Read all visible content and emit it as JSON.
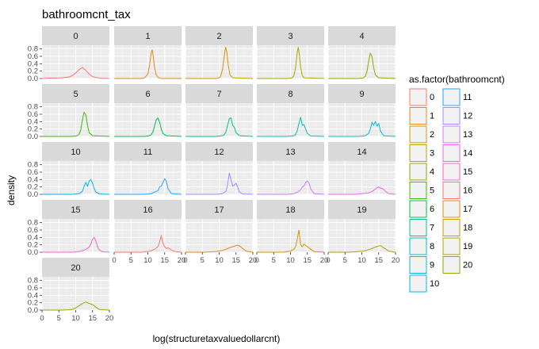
{
  "chart_data": {
    "type": "line",
    "title": "bathroomcnt_tax",
    "xlabel": "log(structuretaxvaluedollarcnt)",
    "ylabel": "density",
    "xlim": [
      0,
      20
    ],
    "ylim": [
      0,
      0.9
    ],
    "x_ticks": [
      0,
      5,
      10,
      15,
      20
    ],
    "y_ticks": [
      0.0,
      0.2,
      0.4,
      0.6,
      0.8
    ],
    "x_tick_labels": [
      "0",
      "5",
      "10",
      "15",
      "20"
    ],
    "y_tick_labels": [
      "0.0",
      "0.2",
      "0.4",
      "0.6",
      "0.8"
    ],
    "grid": true,
    "legend_position": "right",
    "legend_title": "as.factor(bathroomcnt)",
    "facet_labels": [
      "0",
      "1",
      "2",
      "3",
      "4",
      "5",
      "6",
      "7",
      "8",
      "9",
      "10",
      "11",
      "12",
      "13",
      "14",
      "15",
      "16",
      "17",
      "18",
      "19",
      "20"
    ],
    "colors": [
      "#F8766D",
      "#E7851E",
      "#D09400",
      "#B2A100",
      "#89AC00",
      "#45B500",
      "#00BC51",
      "#00C087",
      "#00C0B2",
      "#00BCD6",
      "#00B3F2",
      "#29A3FF",
      "#9C8DFF",
      "#D277FF",
      "#F166E8",
      "#FF61C7",
      "#F8766D",
      "#E7851E",
      "#D09400",
      "#B2A100",
      "#89AC00"
    ],
    "series": [
      {
        "name": "0",
        "x": [
          0,
          2,
          4,
          6,
          8,
          9,
          10,
          11,
          12,
          13,
          14,
          15,
          17,
          20
        ],
        "y": [
          0,
          0.01,
          0.01,
          0.02,
          0.04,
          0.08,
          0.15,
          0.24,
          0.3,
          0.22,
          0.12,
          0.05,
          0.01,
          0
        ]
      },
      {
        "name": "1",
        "x": [
          0,
          8,
          9,
          10,
          10.5,
          11,
          11.3,
          11.6,
          12,
          12.5,
          13,
          14,
          20
        ],
        "y": [
          0,
          0,
          0.02,
          0.12,
          0.35,
          0.7,
          0.78,
          0.6,
          0.3,
          0.1,
          0.03,
          0,
          0
        ]
      },
      {
        "name": "2",
        "x": [
          0,
          9,
          10,
          10.5,
          11,
          11.5,
          11.9,
          12.3,
          12.7,
          13.2,
          14,
          20
        ],
        "y": [
          0,
          0,
          0.02,
          0.08,
          0.25,
          0.6,
          0.85,
          0.7,
          0.35,
          0.1,
          0.02,
          0
        ]
      },
      {
        "name": "3",
        "x": [
          0,
          9,
          10.5,
          11,
          11.5,
          12,
          12.3,
          12.6,
          13,
          13.5,
          14,
          20
        ],
        "y": [
          0,
          0,
          0.02,
          0.08,
          0.3,
          0.7,
          0.85,
          0.65,
          0.3,
          0.08,
          0.02,
          0
        ]
      },
      {
        "name": "4",
        "x": [
          0,
          9,
          10.5,
          11,
          11.5,
          12,
          12.5,
          13,
          13.5,
          14,
          15,
          20
        ],
        "y": [
          0,
          0,
          0.02,
          0.06,
          0.18,
          0.45,
          0.68,
          0.6,
          0.3,
          0.1,
          0.02,
          0
        ]
      },
      {
        "name": "5",
        "x": [
          0,
          9,
          10.5,
          11,
          11.5,
          12,
          12.5,
          13,
          13.5,
          14,
          15,
          20
        ],
        "y": [
          0,
          0,
          0.02,
          0.06,
          0.18,
          0.45,
          0.65,
          0.58,
          0.3,
          0.1,
          0.02,
          0
        ]
      },
      {
        "name": "6",
        "x": [
          0,
          9,
          10.5,
          11,
          11.5,
          12,
          12.5,
          13,
          13.5,
          14,
          14.5,
          15.5,
          20
        ],
        "y": [
          0,
          0,
          0.02,
          0.05,
          0.12,
          0.28,
          0.45,
          0.5,
          0.38,
          0.2,
          0.08,
          0.02,
          0
        ]
      },
      {
        "name": "7",
        "x": [
          0,
          9,
          11,
          11.5,
          12,
          12.5,
          13,
          13.5,
          14,
          14.5,
          15,
          16,
          20
        ],
        "y": [
          0,
          0,
          0.02,
          0.05,
          0.12,
          0.3,
          0.48,
          0.5,
          0.3,
          0.25,
          0.1,
          0.02,
          0
        ]
      },
      {
        "name": "8",
        "x": [
          0,
          9,
          11,
          11.5,
          12,
          12.5,
          13,
          13.5,
          14,
          14.5,
          15,
          16,
          20
        ],
        "y": [
          0,
          0,
          0.02,
          0.05,
          0.15,
          0.35,
          0.52,
          0.3,
          0.32,
          0.2,
          0.08,
          0.01,
          0
        ]
      },
      {
        "name": "9",
        "x": [
          0,
          9,
          11,
          12,
          12.5,
          13,
          13.5,
          14,
          14.5,
          15,
          15.5,
          16.5,
          20
        ],
        "y": [
          0,
          0,
          0.02,
          0.08,
          0.2,
          0.38,
          0.3,
          0.4,
          0.28,
          0.35,
          0.15,
          0.02,
          0
        ]
      },
      {
        "name": "10",
        "x": [
          0,
          9,
          11,
          12,
          12.5,
          13,
          13.5,
          14,
          14.5,
          15,
          15.5,
          16,
          17,
          20
        ],
        "y": [
          0,
          0,
          0.02,
          0.08,
          0.22,
          0.32,
          0.22,
          0.36,
          0.4,
          0.3,
          0.15,
          0.06,
          0.01,
          0
        ]
      },
      {
        "name": "11",
        "x": [
          0,
          9,
          11,
          12,
          13,
          13.5,
          14,
          14.5,
          15,
          15.5,
          16,
          17,
          20
        ],
        "y": [
          0,
          0,
          0.02,
          0.06,
          0.1,
          0.2,
          0.22,
          0.32,
          0.42,
          0.35,
          0.15,
          0.02,
          0
        ]
      },
      {
        "name": "12",
        "x": [
          0,
          9,
          11,
          12,
          12.5,
          13,
          13.5,
          14,
          14.5,
          15,
          15.5,
          16,
          17,
          20
        ],
        "y": [
          0,
          0,
          0.02,
          0.08,
          0.25,
          0.58,
          0.4,
          0.22,
          0.25,
          0.3,
          0.2,
          0.06,
          0.01,
          0
        ]
      },
      {
        "name": "13",
        "x": [
          0,
          9,
          11,
          12,
          13,
          13.5,
          14,
          14.5,
          15,
          15.5,
          16,
          17,
          20
        ],
        "y": [
          0,
          0,
          0.02,
          0.06,
          0.12,
          0.2,
          0.22,
          0.32,
          0.36,
          0.3,
          0.15,
          0.02,
          0
        ]
      },
      {
        "name": "14",
        "x": [
          0,
          8,
          10,
          12,
          13,
          14,
          14.5,
          15,
          15.5,
          16,
          16.5,
          17,
          18,
          20
        ],
        "y": [
          0,
          0,
          0.02,
          0.04,
          0.08,
          0.14,
          0.18,
          0.2,
          0.17,
          0.16,
          0.13,
          0.08,
          0.02,
          0
        ]
      },
      {
        "name": "15",
        "x": [
          0,
          9,
          11,
          12,
          13,
          14,
          14.5,
          15,
          15.5,
          16,
          16.5,
          17,
          18,
          20
        ],
        "y": [
          0,
          0,
          0.02,
          0.04,
          0.08,
          0.14,
          0.22,
          0.35,
          0.4,
          0.3,
          0.15,
          0.06,
          0.01,
          0
        ]
      },
      {
        "name": "16",
        "x": [
          0,
          8,
          10,
          11,
          12,
          13,
          13.5,
          14,
          14.5,
          15,
          15.5,
          16,
          17,
          18,
          20
        ],
        "y": [
          0,
          0,
          0.02,
          0.04,
          0.08,
          0.15,
          0.28,
          0.44,
          0.25,
          0.15,
          0.1,
          0.12,
          0.06,
          0.02,
          0
        ]
      },
      {
        "name": "17",
        "x": [
          0,
          6,
          9,
          11,
          12,
          13,
          14,
          15,
          15.5,
          16,
          17,
          18,
          20
        ],
        "y": [
          0,
          0,
          0.02,
          0.05,
          0.08,
          0.12,
          0.15,
          0.18,
          0.19,
          0.17,
          0.1,
          0.03,
          0
        ]
      },
      {
        "name": "18",
        "x": [
          0,
          8,
          10,
          11,
          11.5,
          12,
          12.5,
          13,
          13.5,
          14,
          15,
          16,
          17,
          20
        ],
        "y": [
          0,
          0,
          0.03,
          0.08,
          0.15,
          0.35,
          0.6,
          0.2,
          0.15,
          0.22,
          0.15,
          0.08,
          0.02,
          0
        ]
      },
      {
        "name": "19",
        "x": [
          0,
          6,
          9,
          11,
          12,
          13,
          14,
          15,
          15.5,
          16,
          17,
          18,
          20
        ],
        "y": [
          0,
          0,
          0.02,
          0.04,
          0.07,
          0.1,
          0.14,
          0.17,
          0.18,
          0.15,
          0.09,
          0.03,
          0
        ]
      },
      {
        "name": "20",
        "x": [
          0,
          6,
          8,
          9,
          10,
          11,
          12,
          12.5,
          13,
          14,
          15,
          16,
          17,
          20
        ],
        "y": [
          0,
          0,
          0.01,
          0.02,
          0.06,
          0.12,
          0.18,
          0.2,
          0.22,
          0.18,
          0.15,
          0.08,
          0.02,
          0
        ]
      }
    ]
  }
}
